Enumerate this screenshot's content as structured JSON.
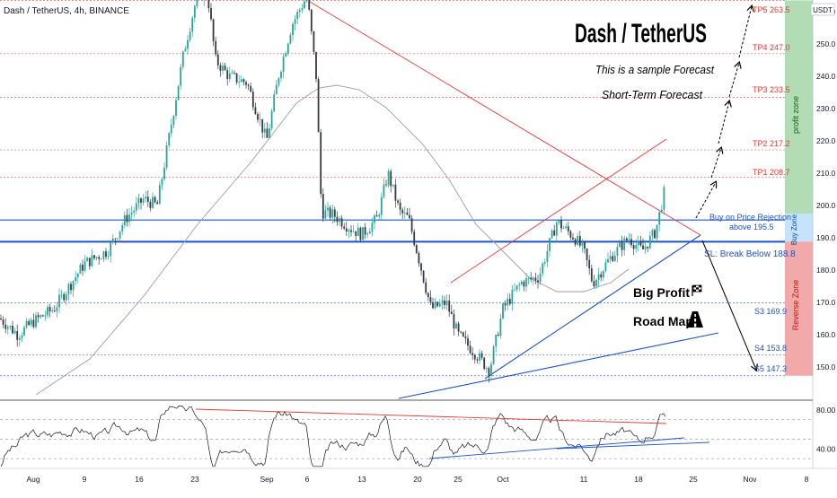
{
  "header": {
    "symbol_line": "Dash / TetherUS, 4h, BINANCE",
    "currency_badge": "USDT"
  },
  "annotations": {
    "big_title": "Dash / TetherUS",
    "subtitle_1": "This is a sample Forecast",
    "subtitle_2": "Short-Term Forecast",
    "buy_label_1": "Buy on Price Rejection",
    "buy_label_2": "above 195.5",
    "sl_label": "SL: Break Below 188.8",
    "big_profit": "Big Profit",
    "road_map": "Road Map",
    "profit_zone": "profit zone",
    "buy_zone": "Buy Zone",
    "reverse_zone": "Reverse Zone"
  },
  "colors": {
    "up_candle": "#26a69a",
    "down_candle": "#363a45",
    "resistance": "#e53935",
    "support": "#1e53c4",
    "profit_zone": "#a5d6a7",
    "buy_zone": "#bbdefb",
    "reverse_zone": "#ef9a9a",
    "level_red": "#e53935",
    "level_blue": "#1e53c4",
    "moving_average": "#9e9e9e"
  },
  "chart_data": [
    {
      "type": "candlestick",
      "title": "Dash / TetherUS, 4h, BINANCE",
      "ylim": [
        142,
        268
      ],
      "price_axis_ticks": [
        150.0,
        160.0,
        170.0,
        180.0,
        190.0,
        200.0,
        210.0,
        220.0,
        230.0,
        240.0,
        250.0,
        260.0
      ],
      "time_axis_ticks": [
        "Aug",
        "9",
        "16",
        "23",
        "Sep",
        "6",
        "13",
        "20",
        "25",
        "Oct",
        "11",
        "18",
        "25",
        "Nov",
        "8"
      ],
      "price_path": [
        {
          "t": "Aug",
          "close": 165
        },
        {
          "t": "9",
          "close": 185
        },
        {
          "t": "16",
          "close": 210
        },
        {
          "t": "23",
          "close": 268
        },
        {
          "t": "Sep",
          "close": 238
        },
        {
          "t": "6",
          "close": 265
        },
        {
          "t": "13",
          "close": 200
        },
        {
          "t": "20",
          "close": 178
        },
        {
          "t": "25",
          "close": 148
        },
        {
          "t": "Oct",
          "close": 178
        },
        {
          "t": "11",
          "close": 173
        },
        {
          "t": "18",
          "close": 193
        },
        {
          "t": "21",
          "close": 207
        }
      ],
      "levels": [
        {
          "name": "TP5",
          "value": 263.5,
          "label": "TP5 263.5",
          "color": "#e53935"
        },
        {
          "name": "TP4",
          "value": 247.0,
          "label": "TP4 247.0",
          "color": "#e53935"
        },
        {
          "name": "TP3",
          "value": 233.5,
          "label": "TP3 233.5",
          "color": "#e53935"
        },
        {
          "name": "TP2",
          "value": 217.2,
          "label": "TP2 217.2",
          "color": "#e53935"
        },
        {
          "name": "TP1",
          "value": 208.7,
          "label": "TP1 208.7",
          "color": "#e53935"
        },
        {
          "name": "Buy",
          "value": 195.5,
          "label": "",
          "color": "#1e53c4"
        },
        {
          "name": "SL",
          "value": 188.8,
          "label": "",
          "color": "#1e53c4"
        },
        {
          "name": "S3",
          "value": 169.9,
          "label": "S3 169.9",
          "color": "#1e53c4"
        },
        {
          "name": "S4",
          "value": 153.8,
          "label": "S4 153.8",
          "color": "#1e53c4"
        },
        {
          "name": "S5",
          "value": 147.3,
          "label": "S5 147.3",
          "color": "#1e53c4"
        }
      ],
      "zones": [
        {
          "name": "profit zone",
          "from": 197.5,
          "to": 263.5
        },
        {
          "name": "Buy Zone",
          "from": 188.8,
          "to": 197.5
        },
        {
          "name": "Reverse Zone",
          "from": 147.3,
          "to": 188.8
        }
      ]
    },
    {
      "type": "line",
      "title": "RSI",
      "ylim": [
        20,
        90
      ],
      "axis_ticks": [
        80.0,
        40.0
      ],
      "dashed_levels": [
        70,
        50,
        30
      ]
    }
  ]
}
